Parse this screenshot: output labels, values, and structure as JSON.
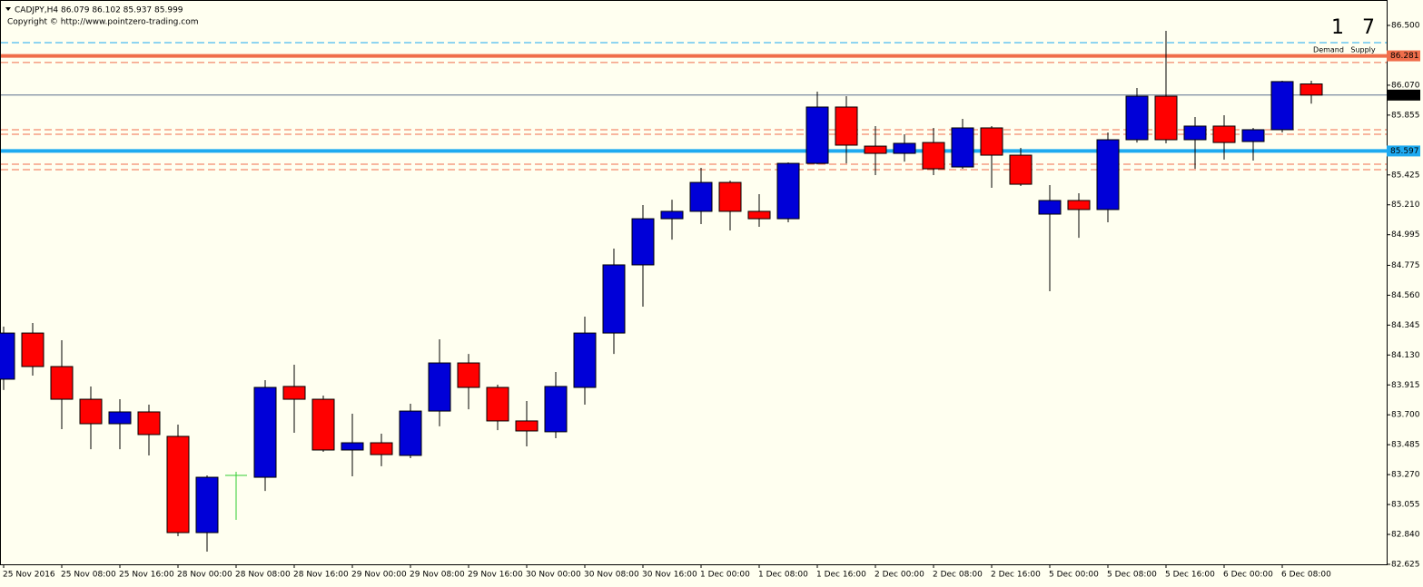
{
  "header": {
    "title": "CADJPY,H4  86.079 86.102 85.937 85.999",
    "copyright": "Copyright © http://www.pointzero-trading.com"
  },
  "zones": {
    "demand": {
      "count": 1,
      "label": "Demand",
      "color": "#1eaaf0"
    },
    "supply": {
      "count": 7,
      "label": "Supply",
      "color": "#f06e4b"
    }
  },
  "chart_data": {
    "type": "candlestick",
    "categories": [
      "25 Nov 2016",
      null,
      "25 Nov 08:00",
      null,
      "25 Nov 16:00",
      null,
      "28 Nov 00:00",
      null,
      "28 Nov 08:00",
      null,
      "28 Nov 16:00",
      null,
      "29 Nov 00:00",
      null,
      "29 Nov 08:00",
      null,
      "29 Nov 16:00",
      null,
      "30 Nov 00:00",
      null,
      "30 Nov 08:00",
      null,
      "30 Nov 16:00",
      null,
      "1 Dec 00:00",
      null,
      "1 Dec 08:00",
      null,
      "1 Dec 16:00",
      null,
      "2 Dec 00:00",
      null,
      "2 Dec 08:00",
      null,
      "2 Dec 16:00",
      null,
      "5 Dec 00:00",
      null,
      "5 Dec 08:00",
      null,
      "5 Dec 16:00",
      null,
      "6 Dec 00:00",
      null,
      "6 Dec 08:00",
      null
    ],
    "open": [
      83.956,
      84.288,
      84.047,
      83.812,
      83.636,
      83.721,
      83.545,
      82.853,
      83.264,
      83.251,
      83.904,
      83.812,
      83.447,
      83.499,
      83.408,
      83.727,
      84.073,
      83.897,
      83.656,
      83.578,
      83.897,
      84.288,
      84.778,
      85.11,
      85.163,
      85.371,
      85.163,
      85.11,
      85.508,
      85.913,
      85.632,
      85.58,
      85.658,
      85.482,
      85.763,
      85.567,
      85.143,
      85.241,
      85.176,
      85.678,
      85.991,
      85.678,
      85.776,
      85.665,
      85.75,
      86.079
    ],
    "high": [
      84.334,
      84.36,
      84.236,
      83.904,
      83.812,
      83.773,
      83.63,
      83.264,
      83.29,
      83.949,
      84.06,
      83.838,
      83.708,
      83.564,
      83.78,
      84.243,
      84.138,
      83.917,
      83.799,
      84.008,
      84.406,
      84.895,
      85.208,
      85.247,
      85.476,
      85.384,
      85.287,
      85.515,
      86.024,
      85.991,
      85.776,
      85.717,
      85.763,
      85.828,
      85.776,
      85.619,
      85.352,
      85.293,
      85.73,
      86.05,
      86.461,
      85.841,
      85.854,
      85.763,
      86.102,
      86.102
    ],
    "low": [
      83.878,
      83.982,
      83.597,
      83.453,
      83.453,
      83.408,
      82.827,
      82.716,
      82.945,
      83.153,
      83.571,
      83.434,
      83.258,
      83.33,
      83.388,
      83.617,
      83.74,
      83.59,
      83.473,
      83.532,
      83.773,
      84.138,
      84.478,
      84.96,
      85.071,
      85.026,
      85.052,
      85.084,
      85.5,
      85.508,
      85.424,
      85.521,
      85.424,
      85.469,
      85.332,
      85.345,
      84.589,
      84.973,
      85.084,
      85.658,
      85.652,
      85.469,
      85.535,
      85.528,
      85.73,
      85.937
    ],
    "close": [
      84.288,
      84.047,
      83.812,
      83.636,
      83.721,
      83.558,
      82.853,
      83.251,
      83.264,
      83.897,
      83.812,
      83.447,
      83.499,
      83.414,
      83.727,
      84.073,
      83.897,
      83.656,
      83.584,
      83.904,
      84.288,
      84.778,
      85.11,
      85.163,
      85.371,
      85.163,
      85.11,
      85.508,
      85.913,
      85.639,
      85.58,
      85.652,
      85.469,
      85.763,
      85.567,
      85.358,
      85.241,
      85.176,
      85.678,
      85.991,
      85.678,
      85.776,
      85.658,
      85.75,
      86.096,
      85.999
    ],
    "colors": {
      "up": "#0000d8",
      "down": "#ff0000",
      "doji": "#32cd32"
    },
    "ylim": [
      82.625,
      86.5
    ],
    "yticks": [
      {
        "value": 86.5,
        "label": "86.500"
      },
      {
        "value": 86.07,
        "label": "86.070"
      },
      85.855,
      85.425,
      {
        "value": 85.21,
        "label": "85.210"
      },
      84.995,
      84.775,
      {
        "value": 84.56,
        "label": "84.560"
      },
      84.345,
      {
        "value": 84.13,
        "label": "84.130"
      },
      83.915,
      {
        "value": 83.7,
        "label": "83.700"
      },
      83.485,
      {
        "value": 83.27,
        "label": "83.270"
      },
      83.055,
      {
        "value": 82.84,
        "label": "82.840"
      },
      82.625
    ],
    "levels": [
      {
        "value": 86.376,
        "color": "#1eaaf0",
        "style": "dashed"
      },
      {
        "value": 86.281,
        "color": "#f06e4b",
        "style": "thick"
      },
      {
        "value": 86.233,
        "color": "#f06e4b",
        "style": "dashed"
      },
      {
        "value": 85.999,
        "color": "#5a6e8c",
        "style": "thin"
      },
      {
        "value": 85.75,
        "color": "#f06e4b",
        "style": "dashed"
      },
      {
        "value": 85.717,
        "color": "#f06e4b",
        "style": "dashed"
      },
      {
        "value": 85.597,
        "color": "#1eaaf0",
        "style": "thick"
      },
      {
        "value": 85.502,
        "color": "#f06e4b",
        "style": "dashed"
      },
      {
        "value": 85.463,
        "color": "#f06e4b",
        "style": "dashed"
      }
    ]
  }
}
